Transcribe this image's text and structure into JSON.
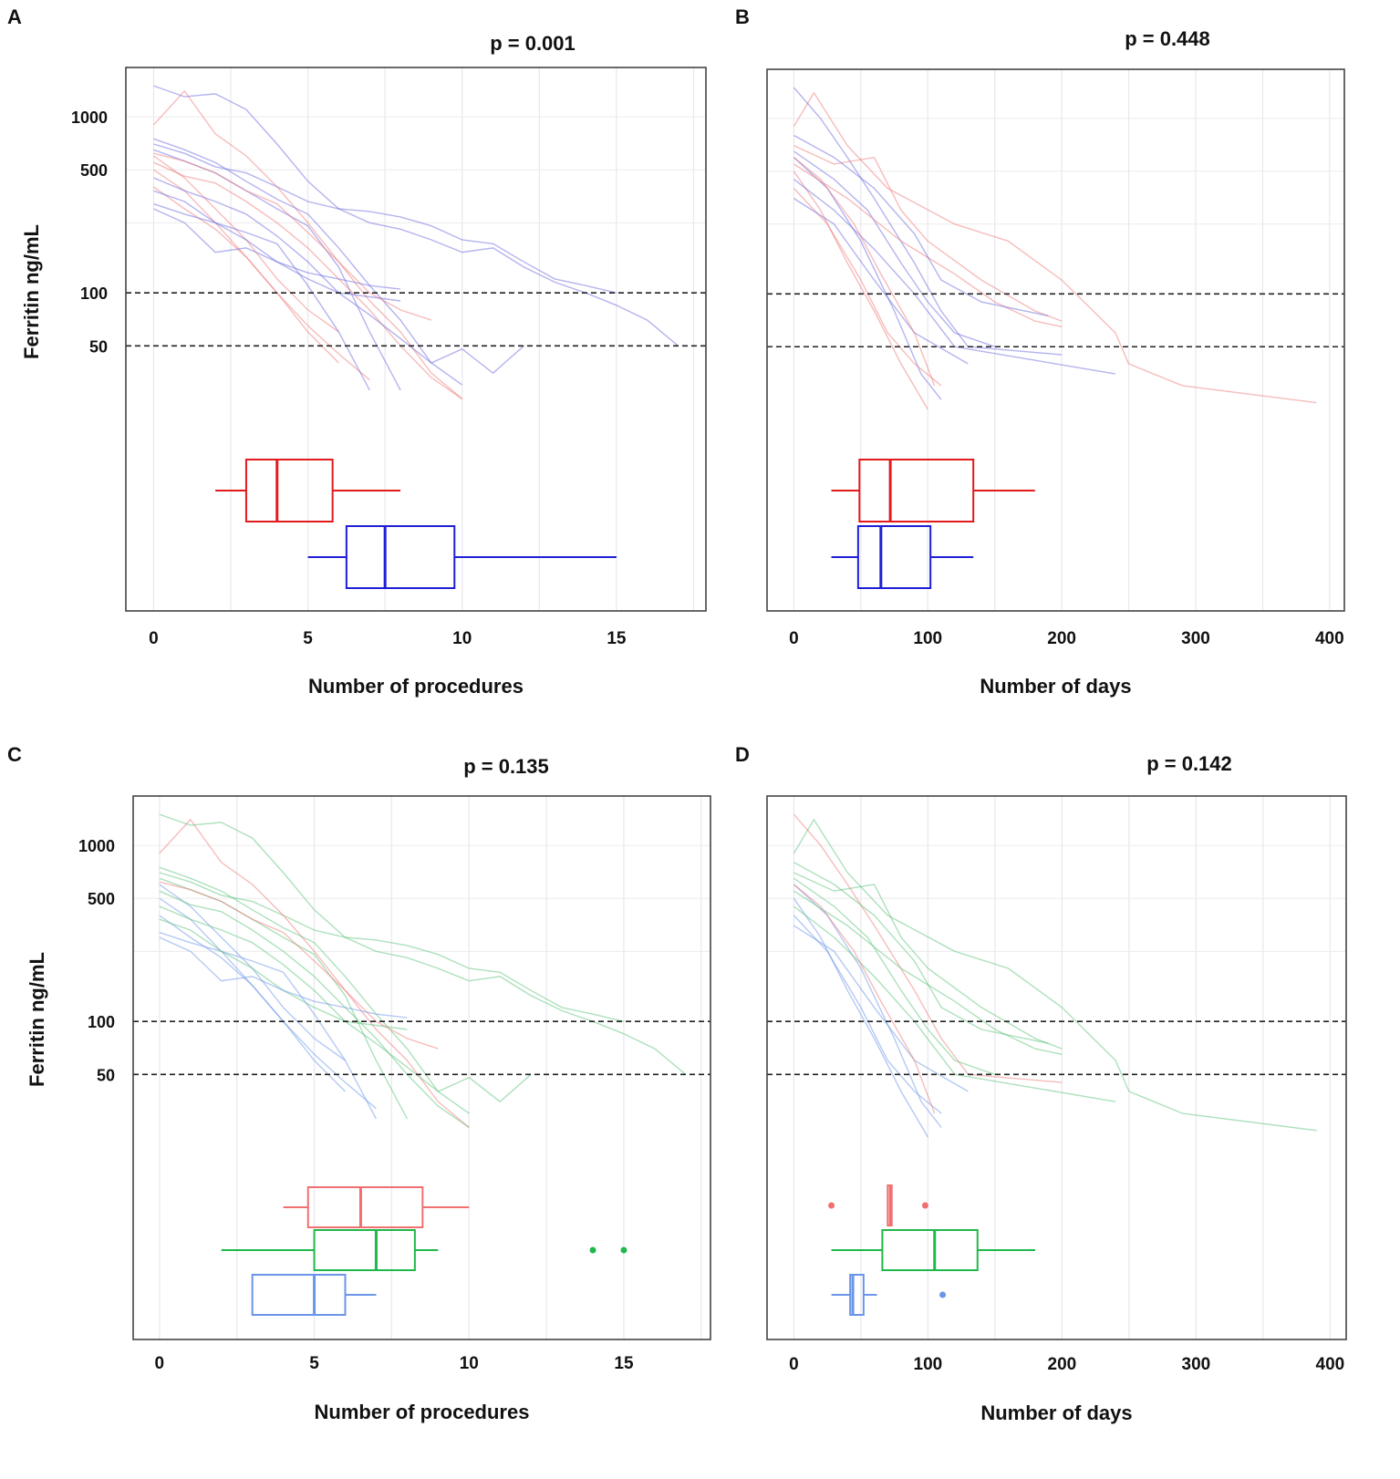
{
  "chart_data": [
    {
      "panel": "A",
      "type": "line",
      "title": "p = 0.001",
      "xlabel": "Number of procedures",
      "ylabel": "Ferritin ng/mL",
      "xlim": [
        -0.9,
        17.9
      ],
      "xticks": [
        0,
        5,
        10,
        15
      ],
      "yscale": "log",
      "ylim": [
        1.56,
        1906
      ],
      "yticks": [
        1000,
        500,
        100,
        50
      ],
      "reference_lines": [
        100,
        50
      ],
      "grid": true,
      "trajectory_set": "procedures",
      "color_key": "colorA",
      "boxplots": [
        {
          "color": "#e31a1c",
          "whisker": [
            2,
            8
          ],
          "box": [
            3,
            5.8
          ],
          "median": 4,
          "outliers": []
        },
        {
          "color": "#1f1fd6",
          "whisker": [
            5,
            15
          ],
          "box": [
            6.25,
            9.75
          ],
          "median": 7.5,
          "outliers": []
        }
      ]
    },
    {
      "panel": "B",
      "type": "line",
      "title": "p = 0.448",
      "xlabel": "Number of days",
      "ylabel": "",
      "xlim": [
        -20,
        411
      ],
      "xticks": [
        0,
        100,
        200,
        300,
        400
      ],
      "yscale": "log",
      "ylim": [
        1.56,
        1906
      ],
      "yticks": [],
      "reference_lines": [
        100,
        50
      ],
      "grid": true,
      "trajectory_set": "days",
      "color_key": "colorB",
      "boxplots": [
        {
          "color": "#e31a1c",
          "whisker": [
            28,
            180
          ],
          "box": [
            49,
            134
          ],
          "median": 72,
          "outliers": []
        },
        {
          "color": "#1f1fd6",
          "whisker": [
            28,
            134
          ],
          "box": [
            48,
            102
          ],
          "median": 65,
          "outliers": []
        }
      ]
    },
    {
      "panel": "C",
      "type": "line",
      "title": "p = 0.135",
      "xlabel": "Number of procedures",
      "ylabel": "Ferritin ng/mL",
      "xlim": [
        -0.85,
        17.8
      ],
      "xticks": [
        0,
        5,
        10,
        15
      ],
      "yscale": "log",
      "ylim": [
        1.56,
        1906
      ],
      "yticks": [
        1000,
        500,
        100,
        50
      ],
      "reference_lines": [
        100,
        50
      ],
      "grid": true,
      "trajectory_set": "procedures",
      "color_key": "colorC",
      "boxplots": [
        {
          "color": "#f07070",
          "whisker": [
            4,
            10
          ],
          "box": [
            4.8,
            8.5
          ],
          "median": 6.5,
          "outliers": []
        },
        {
          "color": "#1fb84a",
          "whisker": [
            2,
            9
          ],
          "box": [
            5,
            8.25
          ],
          "median": 7,
          "outliers": [
            14,
            15
          ]
        },
        {
          "color": "#6b95e8",
          "whisker": [
            3,
            7
          ],
          "box": [
            3,
            6
          ],
          "median": 5,
          "outliers": []
        }
      ]
    },
    {
      "panel": "D",
      "type": "line",
      "title": "p =  0.142",
      "xlabel": "Number of days",
      "ylabel": "",
      "xlim": [
        -20,
        412
      ],
      "xticks": [
        0,
        100,
        200,
        300,
        400
      ],
      "yscale": "log",
      "ylim": [
        1.56,
        1906
      ],
      "yticks": [],
      "reference_lines": [
        100,
        50
      ],
      "grid": true,
      "trajectory_set": "days",
      "color_key": "colorD",
      "boxplots": [
        {
          "color": "#f07070",
          "whisker": [
            70,
            73
          ],
          "box": [
            70,
            73
          ],
          "median": 72,
          "outliers": [
            28,
            98
          ]
        },
        {
          "color": "#1fb84a",
          "whisker": [
            28,
            180
          ],
          "box": [
            66,
            137
          ],
          "median": 105,
          "outliers": []
        },
        {
          "color": "#6b95e8",
          "whisker": [
            28,
            62
          ],
          "box": [
            42,
            52
          ],
          "median": 44,
          "outliers": [
            111
          ]
        }
      ]
    }
  ],
  "trajectories": {
    "procedures": [
      {
        "colorA": "#6a6ae0",
        "colorC": "#5cc47a",
        "values": [
          1500,
          1300,
          1350,
          1100,
          700,
          430,
          300,
          250,
          230,
          200,
          170,
          180,
          140,
          115,
          100,
          85,
          70,
          50
        ]
      },
      {
        "colorA": "#6a6ae0",
        "colorC": "#5cc47a",
        "values": [
          700,
          620,
          520,
          480,
          400,
          330,
          300,
          290,
          270,
          240,
          200,
          190,
          150,
          120,
          110,
          100
        ]
      },
      {
        "colorA": "#f07a7a",
        "colorC": "#f07a7a",
        "values": [
          900,
          1400,
          800,
          600,
          400,
          250,
          150,
          90,
          60,
          35,
          25
        ]
      },
      {
        "colorA": "#f07a7a",
        "colorC": "#6b95e8",
        "values": [
          600,
          450,
          300,
          200,
          120,
          80,
          60
        ]
      },
      {
        "colorA": "#f07a7a",
        "colorC": "#6b95e8",
        "values": [
          500,
          380,
          250,
          160,
          100,
          60,
          40
        ]
      },
      {
        "colorA": "#6a6ae0",
        "colorC": "#5cc47a",
        "values": [
          750,
          650,
          550,
          430,
          340,
          280,
          180,
          110,
          70,
          40,
          30
        ]
      },
      {
        "colorA": "#6a6ae0",
        "colorC": "#5cc47a",
        "values": [
          650,
          560,
          480,
          380,
          300,
          240,
          140,
          60,
          28
        ]
      },
      {
        "colorA": "#f07a7a",
        "colorC": "#5cc47a",
        "values": [
          550,
          460,
          420,
          330,
          250,
          180,
          120,
          80,
          50,
          33,
          25
        ]
      },
      {
        "colorA": "#6a6ae0",
        "colorC": "#5cc47a",
        "values": [
          450,
          380,
          330,
          280,
          210,
          150,
          100,
          75,
          55,
          40,
          48,
          35,
          50
        ]
      },
      {
        "colorA": "#f07a7a",
        "colorC": "#6b95e8",
        "values": [
          400,
          300,
          230,
          160,
          100,
          65,
          45,
          32
        ]
      },
      {
        "colorA": "#6a6ae0",
        "colorC": "#6b95e8",
        "values": [
          320,
          280,
          250,
          220,
          190,
          110,
          60,
          28
        ]
      },
      {
        "colorA": "#6a6ae0",
        "colorC": "#5cc47a",
        "values": [
          380,
          330,
          250,
          200,
          150,
          120,
          100,
          95,
          90
        ]
      },
      {
        "colorA": "#f07a7a",
        "colorC": "#f07a7a",
        "values": [
          620,
          560,
          480,
          380,
          320,
          220,
          150,
          100,
          80,
          70
        ]
      },
      {
        "colorA": "#6a6ae0",
        "colorC": "#6b95e8",
        "values": [
          300,
          250,
          170,
          180,
          150,
          130,
          120,
          110,
          105
        ]
      }
    ],
    "days": [
      {
        "colorB": "#f07a7a",
        "colorD": "#5cc47a",
        "points": [
          [
            0,
            900
          ],
          [
            15,
            1400
          ],
          [
            40,
            700
          ],
          [
            70,
            400
          ],
          [
            120,
            250
          ],
          [
            160,
            200
          ],
          [
            200,
            120
          ],
          [
            240,
            60
          ],
          [
            250,
            40
          ],
          [
            290,
            30
          ],
          [
            390,
            24
          ]
        ]
      },
      {
        "colorB": "#6a6ae0",
        "colorD": "#f07a7a",
        "points": [
          [
            0,
            1500
          ],
          [
            20,
            1000
          ],
          [
            40,
            600
          ],
          [
            60,
            350
          ],
          [
            90,
            150
          ],
          [
            110,
            80
          ],
          [
            130,
            50
          ],
          [
            200,
            45
          ]
        ]
      },
      {
        "colorB": "#f07a7a",
        "colorD": "#5cc47a",
        "points": [
          [
            0,
            700
          ],
          [
            30,
            550
          ],
          [
            60,
            600
          ],
          [
            80,
            300
          ],
          [
            100,
            200
          ],
          [
            140,
            120
          ],
          [
            180,
            80
          ],
          [
            200,
            70
          ]
        ]
      },
      {
        "colorB": "#6a6ae0",
        "colorD": "#6b95e8",
        "points": [
          [
            0,
            600
          ],
          [
            25,
            400
          ],
          [
            50,
            200
          ],
          [
            75,
            80
          ],
          [
            95,
            35
          ],
          [
            110,
            25
          ]
        ]
      },
      {
        "colorB": "#f07a7a",
        "colorD": "#6b95e8",
        "points": [
          [
            0,
            500
          ],
          [
            20,
            300
          ],
          [
            40,
            150
          ],
          [
            60,
            80
          ],
          [
            80,
            40
          ],
          [
            100,
            22
          ]
        ]
      },
      {
        "colorB": "#6a6ae0",
        "colorD": "#5cc47a",
        "points": [
          [
            0,
            650
          ],
          [
            30,
            450
          ],
          [
            55,
            300
          ],
          [
            80,
            150
          ],
          [
            100,
            90
          ],
          [
            120,
            60
          ],
          [
            150,
            50
          ]
        ]
      },
      {
        "colorB": "#f07a7a",
        "colorD": "#6b95e8",
        "points": [
          [
            0,
            400
          ],
          [
            25,
            250
          ],
          [
            50,
            120
          ],
          [
            70,
            60
          ],
          [
            90,
            40
          ],
          [
            110,
            30
          ]
        ]
      },
      {
        "colorB": "#6a6ae0",
        "colorD": "#5cc47a",
        "points": [
          [
            0,
            450
          ],
          [
            30,
            300
          ],
          [
            60,
            180
          ],
          [
            90,
            100
          ],
          [
            120,
            50
          ],
          [
            240,
            35
          ]
        ]
      },
      {
        "colorB": "#f07a7a",
        "colorD": "#5cc47a",
        "points": [
          [
            0,
            550
          ],
          [
            40,
            350
          ],
          [
            80,
            200
          ],
          [
            120,
            130
          ],
          [
            150,
            90
          ],
          [
            180,
            70
          ],
          [
            200,
            65
          ]
        ]
      },
      {
        "colorB": "#6a6ae0",
        "colorD": "#6b95e8",
        "points": [
          [
            0,
            350
          ],
          [
            30,
            250
          ],
          [
            60,
            120
          ],
          [
            90,
            60
          ],
          [
            130,
            40
          ]
        ]
      },
      {
        "colorB": "#f07a7a",
        "colorD": "#f07a7a",
        "points": [
          [
            0,
            600
          ],
          [
            20,
            450
          ],
          [
            45,
            250
          ],
          [
            65,
            130
          ],
          [
            90,
            60
          ],
          [
            105,
            30
          ]
        ]
      },
      {
        "colorB": "#6a6ae0",
        "colorD": "#5cc47a",
        "points": [
          [
            0,
            800
          ],
          [
            30,
            600
          ],
          [
            60,
            400
          ],
          [
            90,
            220
          ],
          [
            110,
            120
          ],
          [
            140,
            90
          ],
          [
            190,
            75
          ]
        ]
      }
    ]
  }
}
